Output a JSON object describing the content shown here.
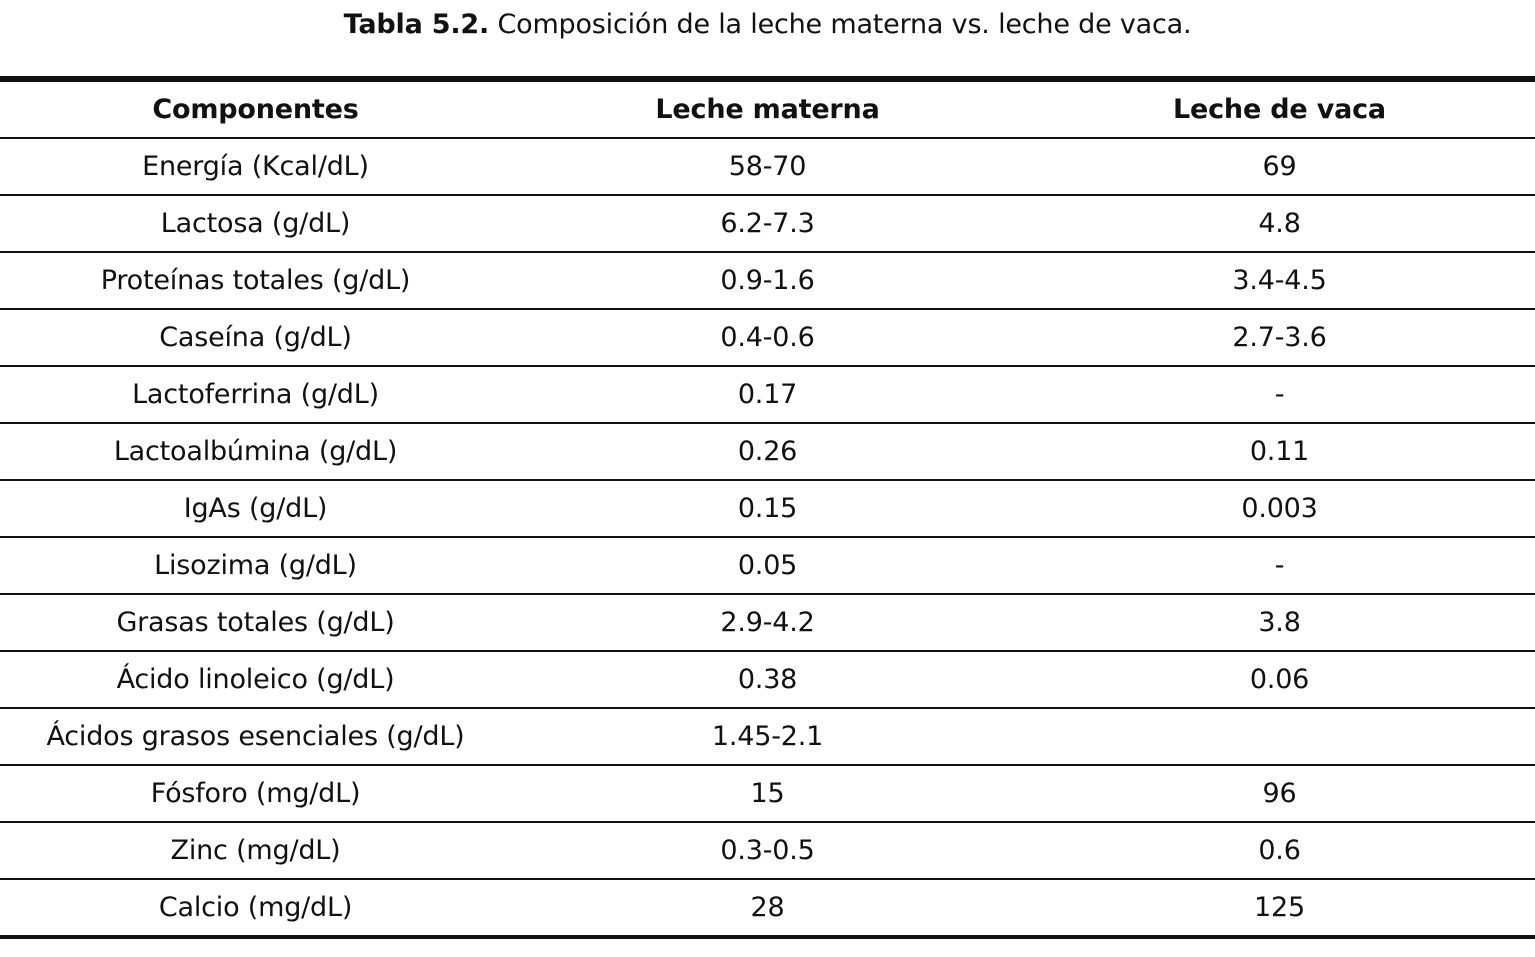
{
  "caption": {
    "label": "Tabla 5.2.",
    "text": "Composición de la leche materna vs. leche de vaca."
  },
  "table": {
    "headers": [
      "Componentes",
      "Leche materna",
      "Leche de vaca"
    ],
    "rows": [
      [
        "Energía (Kcal/dL)",
        "58-70",
        "69"
      ],
      [
        "Lactosa (g/dL)",
        "6.2-7.3",
        "4.8"
      ],
      [
        "Proteínas totales (g/dL)",
        "0.9-1.6",
        "3.4-4.5"
      ],
      [
        "Caseína (g/dL)",
        "0.4-0.6",
        "2.7-3.6"
      ],
      [
        "Lactoferrina (g/dL)",
        "0.17",
        "-"
      ],
      [
        "Lactoalbúmina (g/dL)",
        "0.26",
        "0.11"
      ],
      [
        "IgAs (g/dL)",
        "0.15",
        "0.003"
      ],
      [
        "Lisozima (g/dL)",
        "0.05",
        "-"
      ],
      [
        "Grasas totales (g/dL)",
        "2.9-4.2",
        "3.8"
      ],
      [
        "Ácido linoleico (g/dL)",
        "0.38",
        "0.06"
      ],
      [
        "Ácidos grasos esenciales (g/dL)",
        "1.45-2.1",
        ""
      ],
      [
        "Fósforo (mg/dL)",
        "15",
        "96"
      ],
      [
        "Zinc (mg/dL)",
        "0.3-0.5",
        "0.6"
      ],
      [
        "Calcio (mg/dL)",
        "28",
        "125"
      ]
    ]
  }
}
